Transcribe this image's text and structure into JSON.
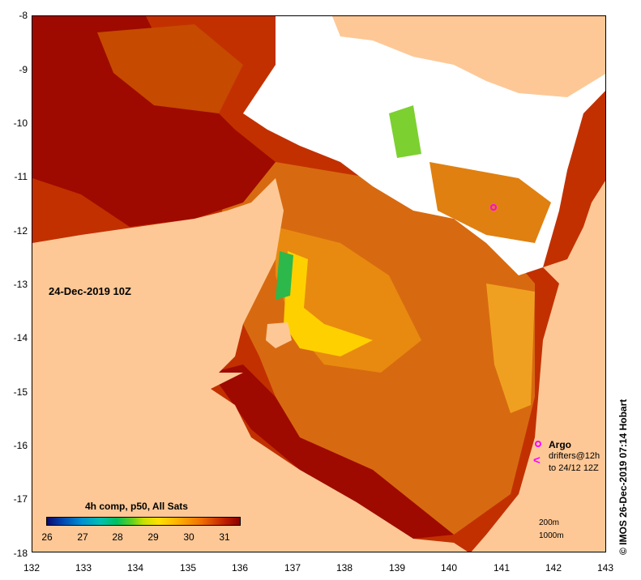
{
  "map": {
    "date_label": "24-Dec-2019 10Z",
    "legend_title": "4h comp, p50, All Sats",
    "colorbar_ticks": [
      "26",
      "27",
      "28",
      "29",
      "30",
      "31"
    ],
    "x_ticks": [
      "132",
      "133",
      "134",
      "135",
      "136",
      "137",
      "138",
      "139",
      "140",
      "141",
      "142",
      "143"
    ],
    "y_ticks": [
      "-8",
      "-9",
      "-10",
      "-11",
      "-12",
      "-13",
      "-14",
      "-15",
      "-16",
      "-17",
      "-18"
    ],
    "argo_label": "Argo",
    "drifter_label_1": "drifters@12h",
    "drifter_label_2": "to 24/12 12Z",
    "depth_200": "200m",
    "depth_1000": "1000m",
    "credit": "© IMOS 26-Dec-2019 07:14 Hobart",
    "colors": {
      "land": "#fdc896",
      "hot": "#a30000",
      "warm": "#d85a00",
      "cool": "#ffe000",
      "cloud": "#ffffff",
      "argo": "#ff00ff"
    }
  }
}
